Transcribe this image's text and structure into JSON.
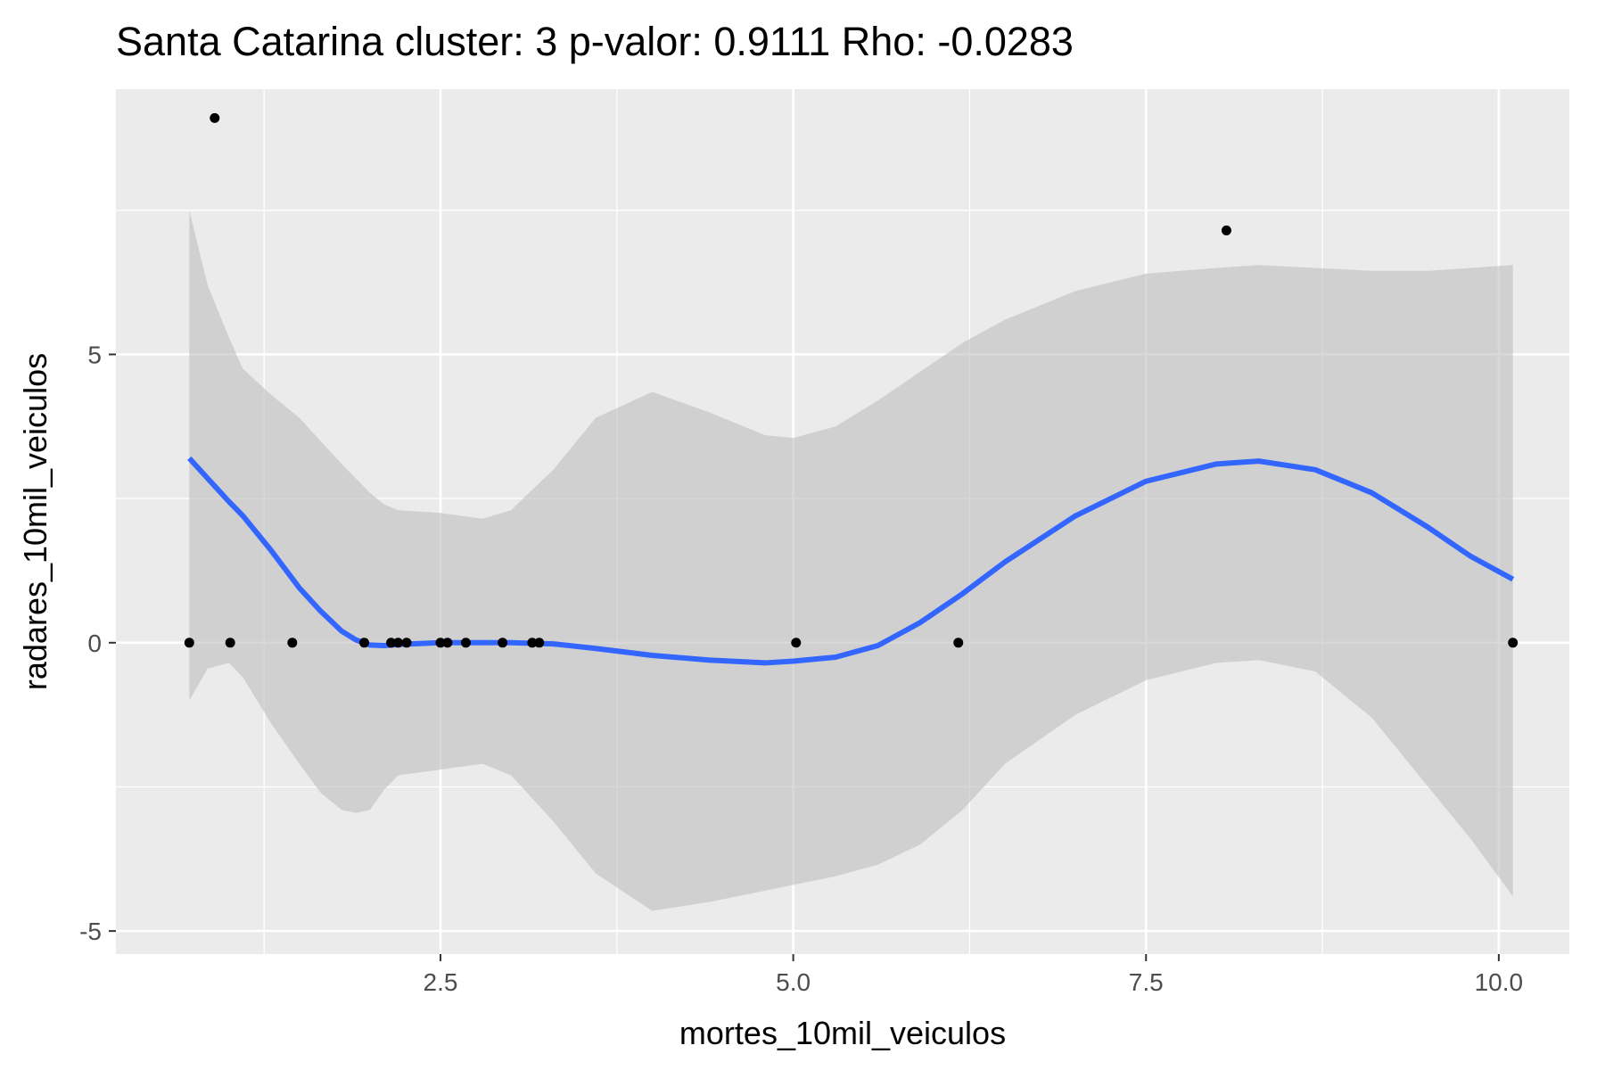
{
  "chart_data": {
    "type": "scatter",
    "title": "Santa Catarina cluster: 3 p-valor: 0.9111 Rho: -0.0283",
    "xlabel": "mortes_10mil_veiculos",
    "ylabel": "radares_10mil_veiculos",
    "xlim": [
      0.2,
      10.5
    ],
    "ylim": [
      -5.4,
      9.6
    ],
    "x_ticks": [
      2.5,
      5.0,
      7.5,
      10.0
    ],
    "x_tick_labels": [
      "2.5",
      "5.0",
      "7.5",
      "10.0"
    ],
    "y_ticks": [
      -5,
      0,
      5
    ],
    "y_tick_labels": [
      "-5",
      "0",
      "5"
    ],
    "grid": true,
    "colors": {
      "panel": "#EBEBEB",
      "grid": "#FFFFFF",
      "points": "#000000",
      "smooth_line": "#3366FF",
      "ribbon": "#BEBEBE"
    },
    "points": [
      {
        "x": 0.72,
        "y": 0.0
      },
      {
        "x": 0.9,
        "y": 9.1
      },
      {
        "x": 1.01,
        "y": 0.0
      },
      {
        "x": 1.45,
        "y": 0.0
      },
      {
        "x": 1.96,
        "y": 0.0
      },
      {
        "x": 2.15,
        "y": 0.0
      },
      {
        "x": 2.2,
        "y": 0.0
      },
      {
        "x": 2.26,
        "y": 0.0
      },
      {
        "x": 2.5,
        "y": 0.0
      },
      {
        "x": 2.55,
        "y": 0.0
      },
      {
        "x": 2.68,
        "y": 0.0
      },
      {
        "x": 2.94,
        "y": 0.0
      },
      {
        "x": 3.15,
        "y": 0.0
      },
      {
        "x": 3.2,
        "y": 0.0
      },
      {
        "x": 5.02,
        "y": 0.0
      },
      {
        "x": 6.17,
        "y": 0.0
      },
      {
        "x": 8.07,
        "y": 7.15
      },
      {
        "x": 10.1,
        "y": 0.0
      }
    ],
    "smooth": [
      {
        "x": 0.72,
        "y": 3.2,
        "lower": -1.0,
        "upper": 7.5
      },
      {
        "x": 0.85,
        "y": 2.85,
        "lower": -0.45,
        "upper": 6.2
      },
      {
        "x": 1.0,
        "y": 2.45,
        "lower": -0.35,
        "upper": 5.3
      },
      {
        "x": 1.1,
        "y": 2.2,
        "lower": -0.6,
        "upper": 4.75
      },
      {
        "x": 1.3,
        "y": 1.6,
        "lower": -1.4,
        "upper": 4.3
      },
      {
        "x": 1.5,
        "y": 0.95,
        "lower": -2.1,
        "upper": 3.9
      },
      {
        "x": 1.65,
        "y": 0.55,
        "lower": -2.6,
        "upper": 3.5
      },
      {
        "x": 1.8,
        "y": 0.2,
        "lower": -2.9,
        "upper": 3.1
      },
      {
        "x": 1.9,
        "y": 0.05,
        "lower": -2.95,
        "upper": 2.85
      },
      {
        "x": 2.0,
        "y": -0.04,
        "lower": -2.9,
        "upper": 2.6
      },
      {
        "x": 2.1,
        "y": -0.05,
        "lower": -2.55,
        "upper": 2.4
      },
      {
        "x": 2.2,
        "y": -0.03,
        "lower": -2.3,
        "upper": 2.3
      },
      {
        "x": 2.5,
        "y": 0.0,
        "lower": -2.2,
        "upper": 2.25
      },
      {
        "x": 2.8,
        "y": 0.0,
        "lower": -2.1,
        "upper": 2.15
      },
      {
        "x": 3.0,
        "y": 0.0,
        "lower": -2.3,
        "upper": 2.3
      },
      {
        "x": 3.3,
        "y": -0.02,
        "lower": -3.1,
        "upper": 3.0
      },
      {
        "x": 3.6,
        "y": -0.1,
        "lower": -4.0,
        "upper": 3.9
      },
      {
        "x": 4.0,
        "y": -0.22,
        "lower": -4.65,
        "upper": 4.35
      },
      {
        "x": 4.4,
        "y": -0.3,
        "lower": -4.5,
        "upper": 4.0
      },
      {
        "x": 4.8,
        "y": -0.35,
        "lower": -4.3,
        "upper": 3.6
      },
      {
        "x": 5.0,
        "y": -0.32,
        "lower": -4.2,
        "upper": 3.55
      },
      {
        "x": 5.3,
        "y": -0.25,
        "lower": -4.05,
        "upper": 3.75
      },
      {
        "x": 5.6,
        "y": -0.05,
        "lower": -3.85,
        "upper": 4.2
      },
      {
        "x": 5.9,
        "y": 0.35,
        "lower": -3.5,
        "upper": 4.7
      },
      {
        "x": 6.2,
        "y": 0.85,
        "lower": -2.9,
        "upper": 5.2
      },
      {
        "x": 6.5,
        "y": 1.4,
        "lower": -2.1,
        "upper": 5.6
      },
      {
        "x": 7.0,
        "y": 2.2,
        "lower": -1.25,
        "upper": 6.1
      },
      {
        "x": 7.5,
        "y": 2.8,
        "lower": -0.65,
        "upper": 6.4
      },
      {
        "x": 8.0,
        "y": 3.1,
        "lower": -0.35,
        "upper": 6.5
      },
      {
        "x": 8.3,
        "y": 3.15,
        "lower": -0.3,
        "upper": 6.55
      },
      {
        "x": 8.7,
        "y": 3.0,
        "lower": -0.5,
        "upper": 6.5
      },
      {
        "x": 9.1,
        "y": 2.6,
        "lower": -1.3,
        "upper": 6.45
      },
      {
        "x": 9.5,
        "y": 2.0,
        "lower": -2.5,
        "upper": 6.45
      },
      {
        "x": 9.8,
        "y": 1.5,
        "lower": -3.4,
        "upper": 6.5
      },
      {
        "x": 10.1,
        "y": 1.1,
        "lower": -4.4,
        "upper": 6.55
      }
    ]
  }
}
